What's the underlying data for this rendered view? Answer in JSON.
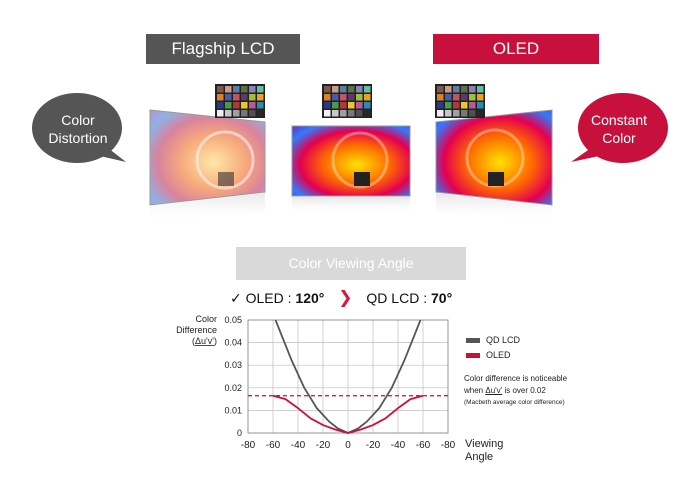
{
  "header": {
    "lcd_label": "Flagship LCD",
    "oled_label": "OLED"
  },
  "bubbles": {
    "left": [
      "Color",
      "Distortion"
    ],
    "right": [
      "Constant",
      "Color"
    ]
  },
  "colors": {
    "lcd": "#555555",
    "oled": "#c8103c",
    "grid": "#bfbfbf",
    "threshold": "#e0202c",
    "caption_bg": "#d9d9d9"
  },
  "caption": "Color Viewing Angle",
  "comparison": {
    "check": "✓",
    "oled_prefix": "OLED : ",
    "oled_value": "120°",
    "lcd_prefix": "QD LCD : ",
    "lcd_value": "70°"
  },
  "chart_data": {
    "type": "line",
    "ylabel": "Color Difference (Δu'v')",
    "xlabel": "Viewing Angle",
    "x_tick_labels": [
      "-80",
      "-60",
      "-40",
      "-20",
      "0",
      "-20",
      "-40",
      "-60",
      "-80"
    ],
    "y_ticks": [
      0,
      0.01,
      0.02,
      0.03,
      0.04,
      0.05
    ],
    "y_tick_labels": [
      "0",
      "0.01",
      "0.02",
      "0.03",
      "0.04",
      "0.05"
    ],
    "xlim": [
      -80,
      80
    ],
    "ylim": [
      0,
      0.05
    ],
    "grid": true,
    "series": [
      {
        "name": "QD LCD",
        "x": [
          -58,
          -45,
          -35,
          -25,
          -15,
          -8,
          0,
          8,
          15,
          25,
          35,
          45,
          58
        ],
        "y": [
          0.05,
          0.032,
          0.02,
          0.011,
          0.005,
          0.002,
          0.0,
          0.002,
          0.005,
          0.011,
          0.02,
          0.032,
          0.05
        ]
      },
      {
        "name": "OLED",
        "x": [
          -60,
          -50,
          -40,
          -30,
          -20,
          -10,
          0,
          10,
          20,
          30,
          40,
          50,
          60
        ],
        "y": [
          0.0165,
          0.015,
          0.011,
          0.0065,
          0.0035,
          0.0015,
          0.0,
          0.0015,
          0.0035,
          0.0065,
          0.011,
          0.015,
          0.0165
        ]
      }
    ],
    "threshold": 0.0165,
    "note": {
      "line1": "Color difference is noticeable",
      "line2_prefix": "when ",
      "line2_symbol": "Δu'v'",
      "line2_suffix": " is over 0.02",
      "line3": "(Macbeth average color difference)"
    }
  }
}
